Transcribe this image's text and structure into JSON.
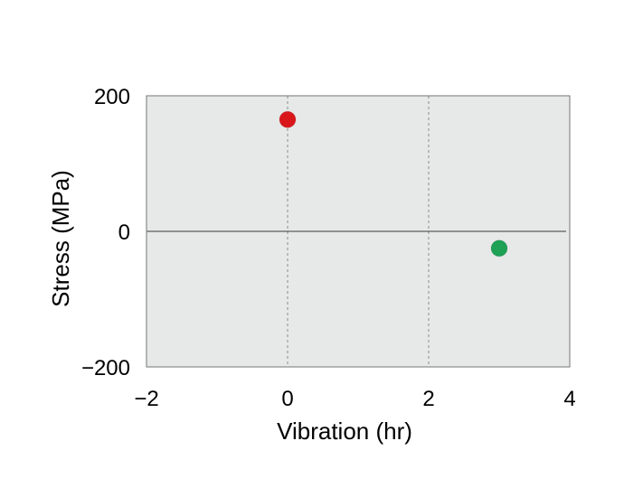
{
  "chart_data": {
    "type": "scatter",
    "xlabel": "Vibration (hr)",
    "ylabel": "Stress (MPa)",
    "xlim": [
      -2,
      4
    ],
    "ylim": [
      -200,
      200
    ],
    "x_ticks": [
      -2,
      0,
      2,
      4
    ],
    "x_tick_labels": [
      "−2",
      "0",
      "2",
      "4"
    ],
    "y_ticks": [
      -200,
      0,
      200
    ],
    "y_tick_labels": [
      "−200",
      "0",
      "200"
    ],
    "vertical_gridlines_at": [
      0,
      2
    ],
    "horizontal_reference_line_at": 0,
    "plot_background": "#e7e8e8",
    "points": [
      {
        "x": 0,
        "y": 165,
        "color": "#d9171b"
      },
      {
        "x": 3,
        "y": -25,
        "color": "#1ea055"
      }
    ]
  }
}
